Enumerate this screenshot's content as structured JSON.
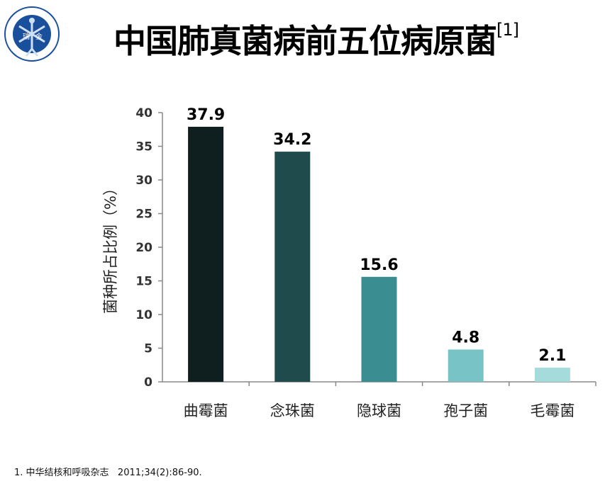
{
  "title": "中国肺真菌病前五位病原菌",
  "title_ref": "[1]",
  "logo": {
    "text": "RUIJIN HOSPITAL SHANGHAI JIAOTONG UNIVERSITY SCHOOL OF MEDICINE 瑞金"
  },
  "footnote": "1. 中华结核和呼吸杂志   2011;34(2):86-90.",
  "chart_data": {
    "type": "bar",
    "categories": [
      "曲霉菌",
      "念珠菌",
      "隐球菌",
      "孢子菌",
      "毛霉菌"
    ],
    "values": [
      37.9,
      34.2,
      15.6,
      4.8,
      2.1
    ],
    "data_labels": [
      "37.9",
      "34.2",
      "15.6",
      "4.8",
      "2.1"
    ],
    "colors": [
      "#0f1e1f",
      "#1f4b4c",
      "#3a8d90",
      "#78c3c6",
      "#a6dbdc"
    ],
    "ylabel": "菌种所占比例（%）",
    "xlabel": "",
    "ylim": [
      0,
      40
    ],
    "yticks": [
      "0",
      "5",
      "10",
      "15",
      "20",
      "25",
      "30",
      "35",
      "40"
    ],
    "grid": false
  }
}
